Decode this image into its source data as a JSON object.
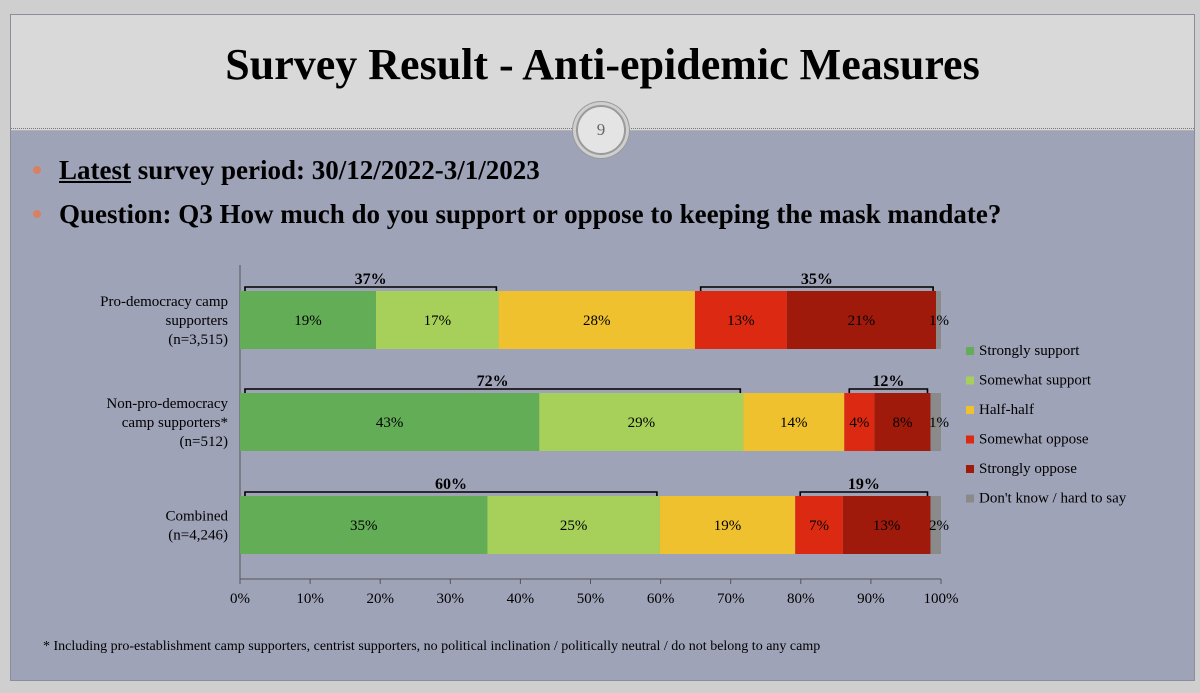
{
  "slide": {
    "title": "Survey Result - Anti-epidemic Measures",
    "page_number": "9",
    "bullets": {
      "b1_underlined": "Latest",
      "b1_rest": " survey period: 30/12/2022-3/1/2023",
      "b2": "Question: Q3 How much do you support or oppose to keeping the mask mandate?"
    },
    "footnote": "* Including pro-establishment camp supporters, centrist supporters, no political inclination / politically neutral / do not belong to any camp"
  },
  "chart_data": {
    "type": "bar",
    "orientation": "horizontal",
    "stacked": true,
    "categories": [
      [
        "Pro-democracy camp",
        "supporters",
        "(n=3,515)"
      ],
      [
        "Non-pro-democracy",
        "camp supporters*",
        "(n=512)"
      ],
      [
        "Combined",
        "(n=4,246)"
      ]
    ],
    "series": [
      {
        "name": "Strongly support",
        "color": "#62ad56",
        "values": [
          19.4,
          42.7,
          35.3
        ],
        "labels": [
          "19%",
          "43%",
          "35%"
        ]
      },
      {
        "name": "Somewhat support",
        "color": "#a6d05a",
        "values": [
          17.5,
          29.1,
          24.6
        ],
        "labels": [
          "17%",
          "29%",
          "25%"
        ]
      },
      {
        "name": "Half-half",
        "color": "#efc12e",
        "values": [
          28.0,
          14.4,
          19.3
        ],
        "labels": [
          "28%",
          "14%",
          "19%"
        ]
      },
      {
        "name": "Somewhat oppose",
        "color": "#dc2a12",
        "values": [
          13.1,
          4.3,
          6.8
        ],
        "labels": [
          "13%",
          "4%",
          "7%"
        ]
      },
      {
        "name": "Strongly oppose",
        "color": "#a01a0c",
        "values": [
          21.3,
          8.0,
          12.5
        ],
        "labels": [
          "21%",
          "8%",
          "13%"
        ]
      },
      {
        "name": "Don't know / hard to say",
        "color": "#8a8a8a",
        "values": [
          0.7,
          1.5,
          1.5
        ],
        "labels": [
          "1%",
          "1%",
          "2%"
        ]
      }
    ],
    "brackets": [
      {
        "row": 0,
        "from": 0,
        "to": 37,
        "label": "37%"
      },
      {
        "row": 0,
        "from": 65,
        "to": 99.3,
        "label": "35%"
      },
      {
        "row": 1,
        "from": 0,
        "to": 71.8,
        "label": "72%"
      },
      {
        "row": 1,
        "from": 86.2,
        "to": 98.5,
        "label": "12%"
      },
      {
        "row": 2,
        "from": 0,
        "to": 59.9,
        "label": "60%"
      },
      {
        "row": 2,
        "from": 79.2,
        "to": 98.5,
        "label": "19%"
      }
    ],
    "xlim": [
      0,
      100
    ],
    "xticks": [
      "0%",
      "10%",
      "20%",
      "30%",
      "40%",
      "50%",
      "60%",
      "70%",
      "80%",
      "90%",
      "100%"
    ],
    "legend_position": "right"
  }
}
